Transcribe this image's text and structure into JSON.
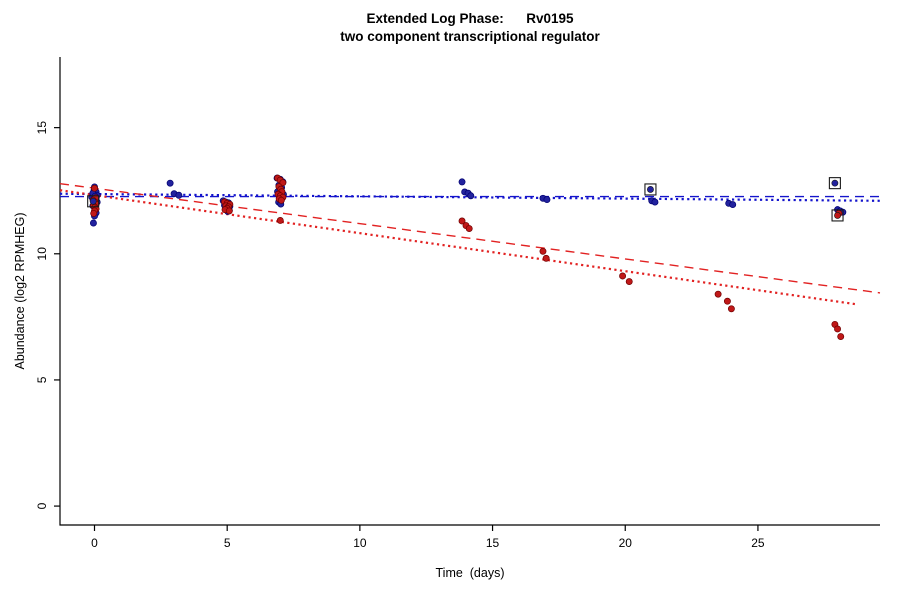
{
  "figure": {
    "title_line1": "Extended Log Phase:      Rv0195",
    "title_line2": "two component transcriptional regulator",
    "xlabel": "Time  (days)",
    "ylabel": "Abundance (log2 RPMHEG)"
  },
  "chart_data": {
    "type": "scatter",
    "title": "Extended Log Phase:      Rv0195",
    "subtitle": "two component transcriptional regulator",
    "xlabel": "Time  (days)",
    "ylabel": "Abundance (log2 RPMHEG)",
    "xlim": [
      -1.3,
      29.6
    ],
    "ylim": [
      -0.75,
      17.8
    ],
    "x_ticks": [
      0,
      5,
      10,
      15,
      20,
      25
    ],
    "y_ticks": [
      0,
      5,
      10,
      15
    ],
    "grid": false,
    "legend": "none",
    "colors": {
      "blue_point": "#22229e",
      "blue_edge": "#000070",
      "red_point": "#c01818",
      "red_edge": "#6e0000",
      "blue_line": "#1414cc",
      "red_line": "#e22222",
      "axis": "#000000",
      "highlight": "#1a1a1a"
    },
    "series": [
      {
        "name": "condition-blue",
        "color": "#22229e",
        "edge": "#000070",
        "points": [
          [
            -0.1,
            12.25
          ],
          [
            0.0,
            12.65
          ],
          [
            -0.02,
            12.5
          ],
          [
            0.06,
            12.45
          ],
          [
            -0.06,
            12.4
          ],
          [
            0.1,
            12.32
          ],
          [
            0.02,
            12.28
          ],
          [
            0.06,
            12.2
          ],
          [
            -0.04,
            12.15
          ],
          [
            0.1,
            12.05
          ],
          [
            0.02,
            12.0
          ],
          [
            -0.06,
            11.9
          ],
          [
            0.02,
            11.78
          ],
          [
            0.06,
            11.62
          ],
          [
            0.0,
            11.5
          ],
          [
            -0.04,
            11.22
          ],
          [
            2.85,
            12.8
          ],
          [
            3.0,
            12.38
          ],
          [
            3.18,
            12.32
          ],
          [
            4.85,
            12.1
          ],
          [
            4.95,
            12.05
          ],
          [
            5.05,
            12.02
          ],
          [
            5.0,
            11.97
          ],
          [
            4.9,
            11.92
          ],
          [
            5.1,
            11.88
          ],
          [
            5.0,
            11.83
          ],
          [
            4.95,
            11.78
          ],
          [
            5.08,
            11.72
          ],
          [
            5.02,
            11.68
          ],
          [
            6.88,
            13.0
          ],
          [
            7.0,
            12.95
          ],
          [
            7.1,
            12.85
          ],
          [
            6.95,
            12.72
          ],
          [
            7.05,
            12.62
          ],
          [
            7.0,
            12.52
          ],
          [
            6.9,
            12.46
          ],
          [
            7.02,
            12.4
          ],
          [
            7.12,
            12.35
          ],
          [
            6.96,
            12.3
          ],
          [
            7.0,
            12.26
          ],
          [
            7.06,
            12.2
          ],
          [
            7.0,
            12.12
          ],
          [
            6.94,
            12.05
          ],
          [
            7.02,
            11.97
          ],
          [
            13.85,
            12.85
          ],
          [
            13.95,
            12.45
          ],
          [
            14.08,
            12.4
          ],
          [
            14.18,
            12.3
          ],
          [
            16.9,
            12.2
          ],
          [
            17.05,
            12.15
          ],
          [
            21.0,
            12.1
          ],
          [
            21.12,
            12.05
          ],
          [
            23.9,
            12.0
          ],
          [
            24.05,
            11.95
          ],
          [
            28.0,
            11.75
          ],
          [
            28.1,
            11.7
          ],
          [
            28.2,
            11.65
          ]
        ]
      },
      {
        "name": "condition-red",
        "color": "#c01818",
        "edge": "#6e0000",
        "points": [
          [
            0.0,
            12.6
          ],
          [
            0.05,
            12.22
          ],
          [
            -0.05,
            12.12
          ],
          [
            0.02,
            12.05
          ],
          [
            0.06,
            11.97
          ],
          [
            -0.04,
            11.9
          ],
          [
            0.02,
            11.84
          ],
          [
            0.06,
            11.78
          ],
          [
            0.0,
            11.7
          ],
          [
            -0.03,
            11.6
          ],
          [
            4.9,
            12.06
          ],
          [
            5.0,
            12.0
          ],
          [
            5.1,
            11.96
          ],
          [
            4.95,
            11.9
          ],
          [
            5.05,
            11.86
          ],
          [
            5.0,
            11.8
          ],
          [
            4.92,
            11.75
          ],
          [
            5.08,
            11.7
          ],
          [
            6.9,
            13.0
          ],
          [
            7.0,
            12.92
          ],
          [
            7.1,
            12.82
          ],
          [
            6.95,
            12.66
          ],
          [
            7.02,
            12.56
          ],
          [
            7.06,
            12.46
          ],
          [
            6.92,
            12.36
          ],
          [
            7.0,
            12.3
          ],
          [
            7.1,
            12.24
          ],
          [
            6.96,
            12.18
          ],
          [
            7.04,
            12.12
          ],
          [
            7.0,
            11.32
          ],
          [
            13.85,
            11.3
          ],
          [
            14.0,
            11.12
          ],
          [
            14.12,
            11.0
          ],
          [
            16.9,
            10.1
          ],
          [
            17.02,
            9.82
          ],
          [
            19.9,
            9.12
          ],
          [
            20.15,
            8.9
          ],
          [
            23.5,
            8.4
          ],
          [
            23.85,
            8.12
          ],
          [
            24.0,
            7.82
          ],
          [
            27.9,
            7.2
          ],
          [
            28.0,
            7.02
          ],
          [
            28.12,
            6.72
          ],
          [
            28.05,
            11.6
          ]
        ]
      }
    ],
    "highlighted_points": [
      {
        "x": -0.05,
        "y": 12.08,
        "series": "condition-blue",
        "color": "#22229e"
      },
      {
        "x": 20.95,
        "y": 12.55,
        "series": "condition-blue",
        "color": "#22229e"
      },
      {
        "x": 27.9,
        "y": 12.8,
        "series": "condition-blue",
        "color": "#22229e"
      },
      {
        "x": 28.0,
        "y": 11.52,
        "series": "condition-red",
        "color": "#c01818"
      }
    ],
    "trend_lines": [
      {
        "name": "blue-dashed-trend",
        "color": "#1414cc",
        "dash": "9,6",
        "width": 1.4,
        "x1": -1.3,
        "y1": 12.27,
        "x2": 29.6,
        "y2": 12.27
      },
      {
        "name": "blue-dotted-trend",
        "color": "#1414cc",
        "dash": "2.2,3.4",
        "width": 2.2,
        "x1": -1.3,
        "y1": 12.38,
        "x2": 29.6,
        "y2": 12.1
      },
      {
        "name": "red-dashed-trend",
        "color": "#e22222",
        "dash": "9,6",
        "width": 1.4,
        "x1": -1.3,
        "y1": 12.78,
        "x2": 29.6,
        "y2": 8.45
      },
      {
        "name": "red-dotted-trend",
        "color": "#e22222",
        "dash": "2.2,3.4",
        "width": 2.2,
        "x1": -1.3,
        "y1": 12.52,
        "x2": 28.7,
        "y2": 8.0
      }
    ]
  }
}
